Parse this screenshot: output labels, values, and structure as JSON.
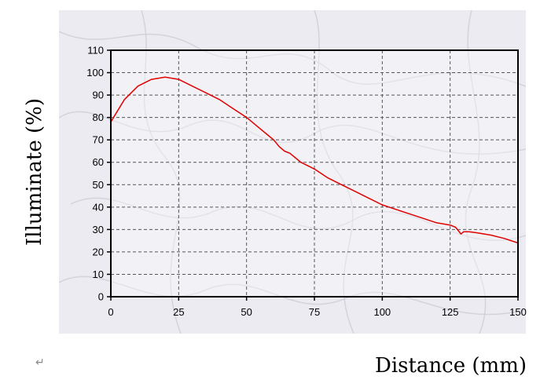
{
  "chart_data": {
    "type": "line",
    "title": "",
    "xlabel": "Distance (mm)",
    "ylabel": "Illuminate (%)",
    "xlim": [
      0,
      150
    ],
    "ylim": [
      0,
      110
    ],
    "xticks": [
      0,
      25,
      50,
      75,
      100,
      125,
      150
    ],
    "yticks": [
      0,
      10,
      20,
      30,
      40,
      50,
      60,
      70,
      80,
      90,
      100,
      110
    ],
    "grid": true,
    "legend": "none",
    "series": [
      {
        "color": "#e00000",
        "x": [
          0,
          5,
          10,
          15,
          20,
          25,
          30,
          35,
          40,
          45,
          50,
          55,
          58,
          60,
          62,
          64,
          66,
          68,
          70,
          75,
          80,
          85,
          90,
          95,
          100,
          105,
          110,
          115,
          120,
          125,
          127,
          129,
          130,
          132,
          135,
          140,
          145,
          150
        ],
        "y": [
          78,
          88,
          94,
          97,
          98,
          97,
          94,
          91,
          88,
          84,
          80,
          75,
          72,
          70,
          67,
          65,
          64,
          62,
          60,
          57,
          53,
          50,
          47,
          44,
          41,
          39,
          37,
          35,
          33,
          32,
          31,
          28,
          29,
          29,
          28.5,
          27.5,
          26,
          24
        ]
      }
    ]
  },
  "figure": {
    "return_mark": "↵"
  },
  "colors": {
    "plot_border": "#000000",
    "grid": "#555555",
    "frame_background": "#ebebf1",
    "marble_vein": "#c9c9d6"
  }
}
